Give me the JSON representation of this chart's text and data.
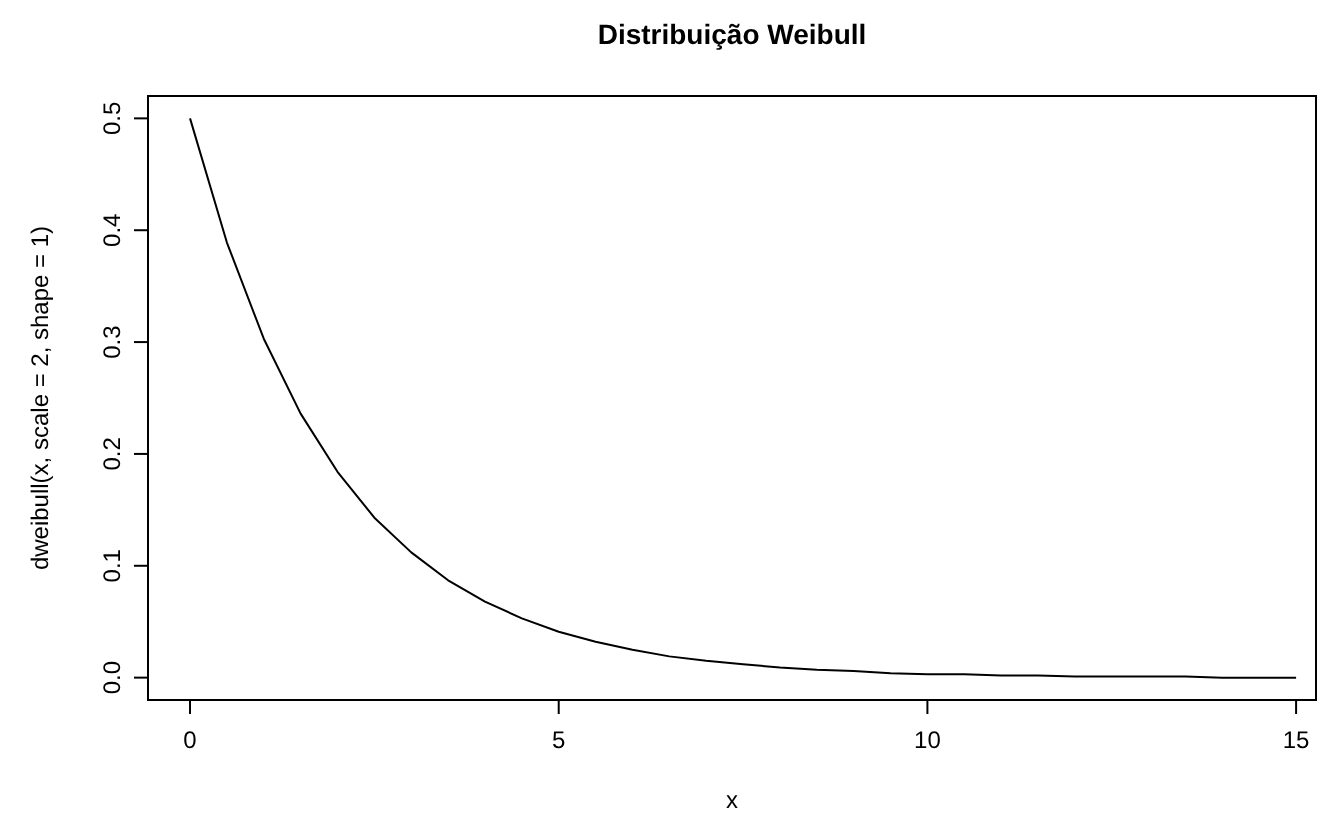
{
  "chart_data": {
    "type": "line",
    "title": "Distribuição Weibull",
    "xlabel": "x",
    "ylabel": "dweibull(x, scale = 2, shape = 1)",
    "x": [
      0,
      0.5,
      1,
      1.5,
      2,
      2.5,
      3,
      3.5,
      4,
      4.5,
      5,
      5.5,
      6,
      6.5,
      7,
      7.5,
      8,
      8.5,
      9,
      9.5,
      10,
      10.5,
      11,
      11.5,
      12,
      12.5,
      13,
      13.5,
      14,
      14.5,
      15
    ],
    "series": [
      {
        "color": "#000000",
        "values": [
          0.5,
          0.389,
          0.303,
          0.236,
          0.184,
          0.143,
          0.112,
          0.087,
          0.068,
          0.053,
          0.041,
          0.032,
          0.025,
          0.019,
          0.015,
          0.012,
          0.009,
          0.007,
          0.006,
          0.004,
          0.003,
          0.003,
          0.002,
          0.002,
          0.001,
          0.001,
          0.001,
          0.001,
          0.0,
          0.0,
          0.0
        ]
      }
    ],
    "xlim": [
      -0.57,
      15.27
    ],
    "ylim": [
      -0.02,
      0.52
    ],
    "xticks": [
      0,
      5,
      10,
      15
    ],
    "yticks": [
      {
        "value": 0,
        "label": "0.0"
      },
      {
        "value": 0.1,
        "label": "0.1"
      },
      {
        "value": 0.2,
        "label": "0.2"
      },
      {
        "value": 0.3,
        "label": "0.3"
      },
      {
        "value": 0.4,
        "label": "0.4"
      },
      {
        "value": 0.5,
        "label": "0.5"
      }
    ],
    "grid": false,
    "marker": "none",
    "line_style": "solid"
  }
}
